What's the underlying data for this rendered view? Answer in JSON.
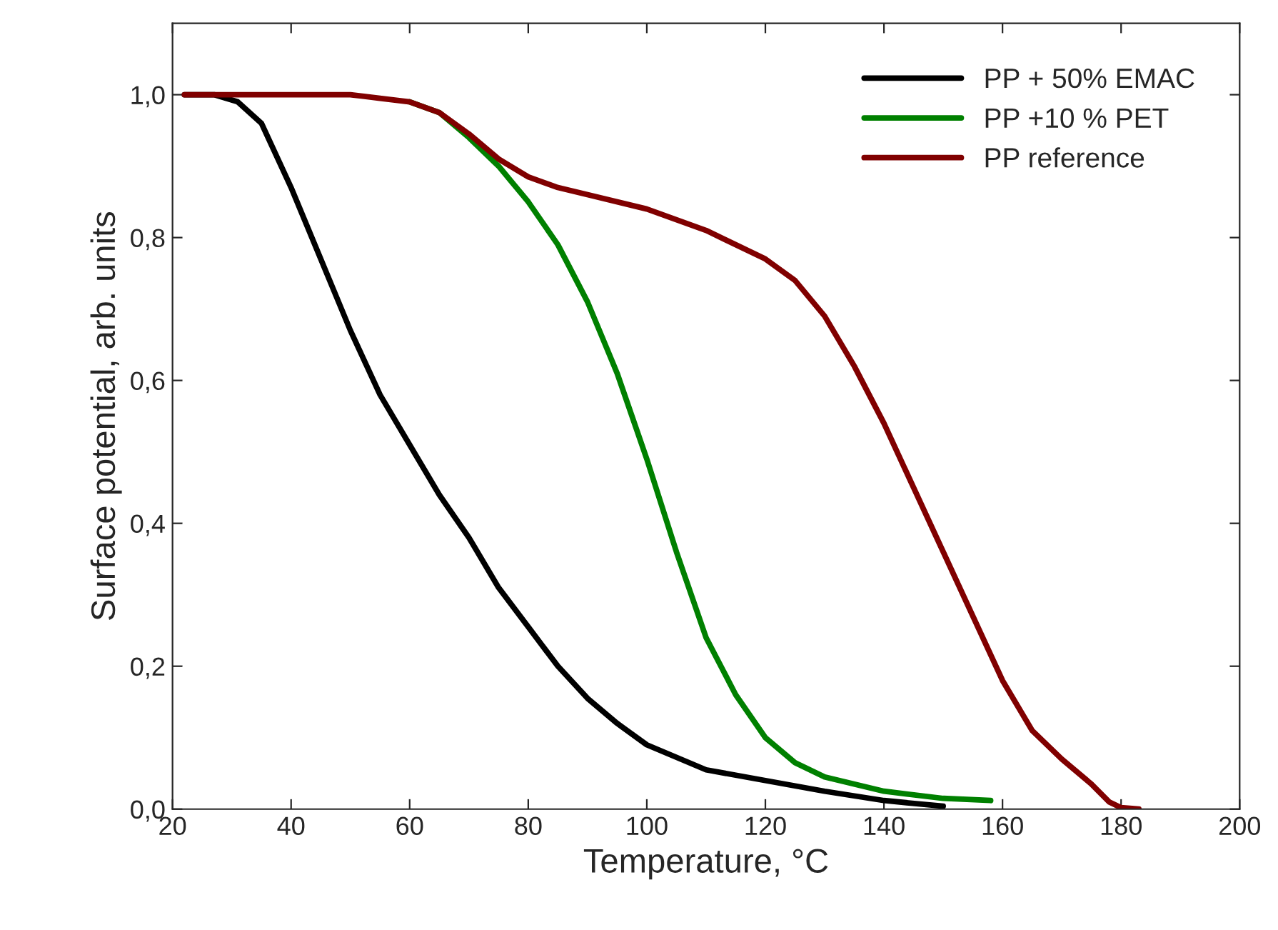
{
  "chart_data": {
    "type": "line",
    "xlabel": "Temperature, °C",
    "ylabel": "Surface potential, arb. units",
    "xlim": [
      20,
      200
    ],
    "xticks": [
      20,
      40,
      60,
      80,
      100,
      120,
      140,
      160,
      180,
      200
    ],
    "ylim": [
      0,
      1.1
    ],
    "yticks": [
      {
        "value": 0,
        "label": "0,0"
      },
      {
        "value": 0.2,
        "label": "0,2"
      },
      {
        "value": 0.4,
        "label": "0,4"
      },
      {
        "value": 0.6,
        "label": "0,6"
      },
      {
        "value": 0.8,
        "label": "0,8"
      },
      {
        "value": 1.0,
        "label": "1,0"
      }
    ],
    "grid": false,
    "legend": "top right",
    "marker": "none",
    "line_style": "solid",
    "series": [
      {
        "name": "PP + 50% EMAC",
        "color": "#000000",
        "x": [
          22,
          27,
          31,
          35,
          40,
          45,
          50,
          55,
          60,
          65,
          70,
          75,
          80,
          85,
          90,
          95,
          100,
          110,
          120,
          130,
          140,
          150
        ],
        "values": [
          1.0,
          1.0,
          0.99,
          0.96,
          0.87,
          0.77,
          0.67,
          0.58,
          0.51,
          0.44,
          0.38,
          0.31,
          0.255,
          0.2,
          0.155,
          0.12,
          0.09,
          0.055,
          0.04,
          0.025,
          0.012,
          0.004
        ]
      },
      {
        "name": "PP +10 % PET",
        "color": "#008000",
        "x": [
          60,
          65,
          70,
          75,
          80,
          85,
          90,
          95,
          100,
          105,
          110,
          115,
          120,
          125,
          130,
          140,
          150,
          158
        ],
        "values": [
          0.99,
          0.975,
          0.94,
          0.9,
          0.85,
          0.79,
          0.71,
          0.61,
          0.49,
          0.36,
          0.24,
          0.16,
          0.1,
          0.065,
          0.045,
          0.025,
          0.015,
          0.012
        ]
      },
      {
        "name": "PP reference",
        "color": "#800000",
        "x": [
          22,
          30,
          40,
          50,
          55,
          60,
          65,
          70,
          75,
          80,
          85,
          90,
          100,
          110,
          120,
          125,
          130,
          135,
          140,
          145,
          150,
          155,
          160,
          165,
          170,
          175,
          178,
          180,
          183
        ],
        "values": [
          1.0,
          1.0,
          1.0,
          1.0,
          0.995,
          0.99,
          0.975,
          0.945,
          0.91,
          0.885,
          0.87,
          0.86,
          0.84,
          0.81,
          0.77,
          0.74,
          0.69,
          0.62,
          0.54,
          0.45,
          0.36,
          0.27,
          0.18,
          0.11,
          0.07,
          0.035,
          0.01,
          0.002,
          0.0
        ]
      }
    ]
  }
}
